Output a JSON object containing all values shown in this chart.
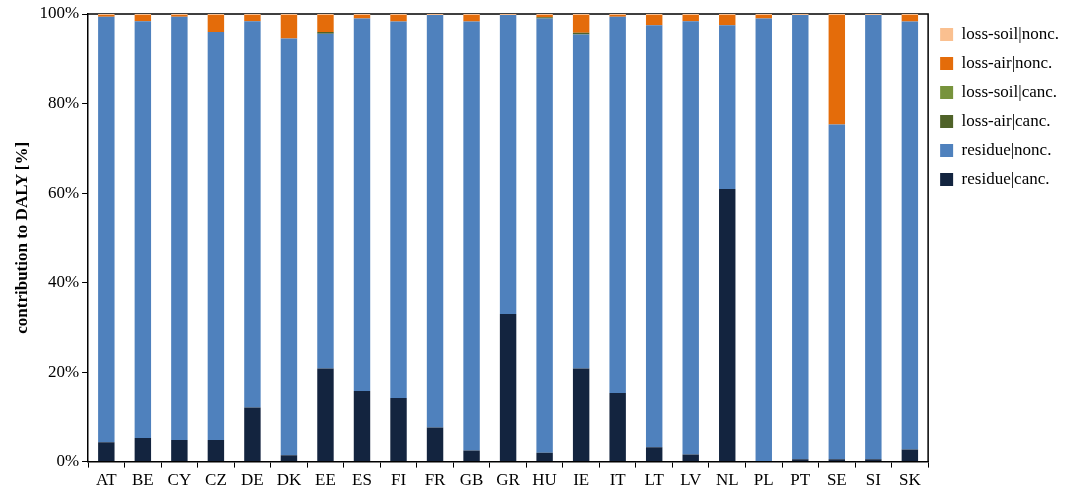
{
  "chart_data": {
    "type": "bar",
    "stacked": true,
    "ylabel": "contribution to DALY [%]",
    "categories": [
      "AT",
      "BE",
      "CY",
      "CZ",
      "DE",
      "DK",
      "EE",
      "ES",
      "FI",
      "FR",
      "GB",
      "GR",
      "HU",
      "IE",
      "IT",
      "LT",
      "LV",
      "NL",
      "PL",
      "PT",
      "SE",
      "SI",
      "SK"
    ],
    "series": [
      {
        "name": "residue|canc.",
        "color": "#13243f",
        "values": [
          4.3,
          5.3,
          4.8,
          4.8,
          12.1,
          1.4,
          20.8,
          15.8,
          14.2,
          7.6,
          2.5,
          33,
          2,
          20.8,
          15.3,
          3.2,
          1.6,
          60.9,
          0,
          0.5,
          0.5,
          0.5,
          2.7
        ]
      },
      {
        "name": "residue|nonc.",
        "color": "#4f81bd",
        "values": [
          95.1,
          93.1,
          94.6,
          91.2,
          86.3,
          93.1,
          74.8,
          83.2,
          84.1,
          92.2,
          95.8,
          66.8,
          97,
          74.6,
          84.1,
          94.3,
          96.8,
          36.6,
          99,
          99.3,
          74.8,
          99.3,
          95.6
        ]
      },
      {
        "name": "loss-air|canc.",
        "color": "#4f6228",
        "values": [
          0,
          0,
          0,
          0,
          0,
          0,
          0.4,
          0,
          0,
          0,
          0,
          0,
          0.3,
          0.4,
          0,
          0,
          0,
          0,
          0,
          0,
          0,
          0,
          0
        ]
      },
      {
        "name": "loss-soil|canc.",
        "color": "#77933c",
        "values": [
          0,
          0,
          0,
          0,
          0,
          0,
          0,
          0,
          0,
          0,
          0,
          0,
          0,
          0,
          0,
          0,
          0,
          0,
          0,
          0,
          0,
          0,
          0
        ]
      },
      {
        "name": "loss-air|nonc.",
        "color": "#e46c0a",
        "values": [
          0.4,
          1.4,
          0.4,
          3.8,
          1.4,
          5.3,
          3.8,
          0.8,
          1.5,
          0,
          1.5,
          0,
          0.5,
          4,
          0.4,
          2.3,
          1.4,
          2.3,
          0.8,
          0,
          24.5,
          0,
          1.5
        ]
      },
      {
        "name": "loss-soil|nonc.",
        "color": "#fac090",
        "values": [
          0.2,
          0.2,
          0.2,
          0.2,
          0.2,
          0.2,
          0.2,
          0.2,
          0.2,
          0.2,
          0.2,
          0.2,
          0.2,
          0.2,
          0.2,
          0.2,
          0.2,
          0.2,
          0.2,
          0.2,
          0.2,
          0.2,
          0.2
        ]
      }
    ],
    "ylim": [
      0,
      100
    ],
    "yticks": [
      {
        "value": 0,
        "label": "0%"
      },
      {
        "value": 20,
        "label": "20%"
      },
      {
        "value": 40,
        "label": "40%"
      },
      {
        "value": 60,
        "label": "60%"
      },
      {
        "value": 80,
        "label": "80%"
      },
      {
        "value": 100,
        "label": "100%"
      }
    ],
    "grid": false,
    "legend": "right"
  }
}
